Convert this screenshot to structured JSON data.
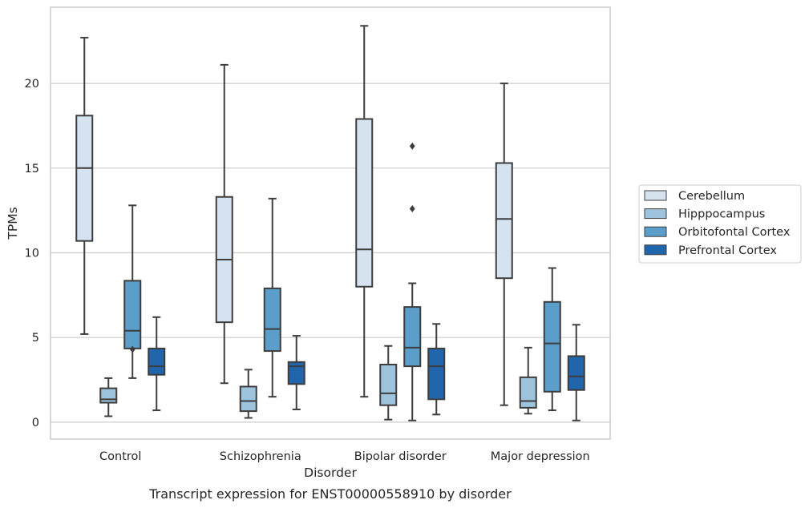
{
  "chart_data": {
    "type": "box",
    "title": "",
    "caption": "Transcript expression for ENST00000558910 by disorder",
    "xlabel": "Disorder",
    "ylabel": "TPMs",
    "ylim": [
      -1.0,
      24.5
    ],
    "yticks": [
      0,
      5,
      10,
      15,
      20
    ],
    "grid": "horizontal",
    "legend_position": "right",
    "categories": [
      "Control",
      "Schizophrenia",
      "Bipolar disorder",
      "Major depression"
    ],
    "series": [
      {
        "name": "Cerebellum",
        "color": "#d5e2f0",
        "boxes": [
          {
            "whisker_low": 5.2,
            "q1": 10.7,
            "median": 15.0,
            "q3": 18.1,
            "whisker_high": 22.7,
            "outliers": []
          },
          {
            "whisker_low": 2.3,
            "q1": 5.9,
            "median": 9.6,
            "q3": 13.3,
            "whisker_high": 21.1,
            "outliers": []
          },
          {
            "whisker_low": 1.5,
            "q1": 8.0,
            "median": 10.2,
            "q3": 17.9,
            "whisker_high": 23.4,
            "outliers": []
          },
          {
            "whisker_low": 1.0,
            "q1": 8.5,
            "median": 12.0,
            "q3": 15.3,
            "whisker_high": 20.0,
            "outliers": []
          }
        ]
      },
      {
        "name": "Hipppocampus",
        "color": "#9dc3dd",
        "boxes": [
          {
            "whisker_low": 0.35,
            "q1": 1.15,
            "median": 1.35,
            "q3": 2.0,
            "whisker_high": 2.6,
            "outliers": []
          },
          {
            "whisker_low": 0.25,
            "q1": 0.65,
            "median": 1.25,
            "q3": 2.1,
            "whisker_high": 3.1,
            "outliers": []
          },
          {
            "whisker_low": 0.15,
            "q1": 1.0,
            "median": 1.7,
            "q3": 3.4,
            "whisker_high": 4.5,
            "outliers": []
          },
          {
            "whisker_low": 0.5,
            "q1": 0.85,
            "median": 1.25,
            "q3": 2.65,
            "whisker_high": 4.4,
            "outliers": []
          }
        ]
      },
      {
        "name": "Orbitofontal Cortex",
        "color": "#5a9ec9",
        "boxes": [
          {
            "whisker_low": 2.6,
            "q1": 4.35,
            "median": 5.4,
            "q3": 8.35,
            "whisker_high": 12.8,
            "outliers": [
              4.3
            ]
          },
          {
            "whisker_low": 1.5,
            "q1": 4.2,
            "median": 5.5,
            "q3": 7.9,
            "whisker_high": 13.2,
            "outliers": []
          },
          {
            "whisker_low": 0.1,
            "q1": 3.3,
            "median": 4.4,
            "q3": 6.8,
            "whisker_high": 8.2,
            "outliers": [
              12.6,
              16.3
            ]
          },
          {
            "whisker_low": 0.7,
            "q1": 1.8,
            "median": 4.65,
            "q3": 7.1,
            "whisker_high": 9.1,
            "outliers": []
          }
        ]
      },
      {
        "name": "Prefrontal Cortex",
        "color": "#2166ac",
        "boxes": [
          {
            "whisker_low": 0.7,
            "q1": 2.8,
            "median": 3.3,
            "q3": 4.35,
            "whisker_high": 6.2,
            "outliers": []
          },
          {
            "whisker_low": 0.75,
            "q1": 2.25,
            "median": 3.3,
            "q3": 3.55,
            "whisker_high": 5.1,
            "outliers": []
          },
          {
            "whisker_low": 0.45,
            "q1": 1.35,
            "median": 3.3,
            "q3": 4.35,
            "whisker_high": 5.8,
            "outliers": []
          },
          {
            "whisker_low": 0.1,
            "q1": 1.9,
            "median": 2.7,
            "q3": 3.9,
            "whisker_high": 5.75,
            "outliers": []
          }
        ]
      }
    ]
  }
}
